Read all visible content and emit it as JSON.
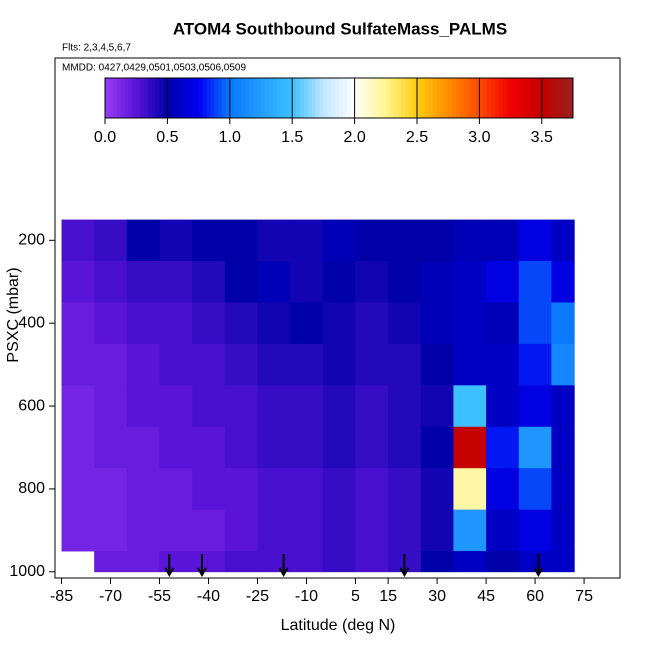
{
  "chart_data": {
    "type": "heatmap",
    "title": "ATOM4 Southbound SulfateMass_PALMS",
    "subtitle": "Flts: 2,3,4,5,6,7",
    "annotation": "MMDD: 0427,0429,0501,0503,0506,0509",
    "x_label": "Latitude (deg N)",
    "y_label": "PSXC (mbar)",
    "xlim": [
      -87,
      86
    ],
    "ylim": [
      1015,
      -240
    ],
    "xticks": [
      -85,
      -70,
      -55,
      -40,
      -25,
      -10,
      5,
      15,
      30,
      45,
      60,
      75
    ],
    "yticks": [
      200,
      400,
      600,
      800,
      1000
    ],
    "x_edges": [
      -85,
      -75,
      -65,
      -55,
      -45,
      -35,
      -25,
      -15,
      -5,
      5,
      15,
      25,
      35,
      45,
      55,
      65,
      72
    ],
    "y_edges": [
      150,
      250,
      350,
      450,
      550,
      650,
      750,
      850,
      950,
      1000
    ],
    "values": [
      [
        0.3,
        0.35,
        0.5,
        0.45,
        0.5,
        0.5,
        0.45,
        0.45,
        0.55,
        0.5,
        0.5,
        0.5,
        0.55,
        0.55,
        0.7,
        0.6
      ],
      [
        0.25,
        0.3,
        0.35,
        0.35,
        0.4,
        0.5,
        0.55,
        0.45,
        0.5,
        0.45,
        0.5,
        0.55,
        0.6,
        0.7,
        0.9,
        0.7
      ],
      [
        0.2,
        0.25,
        0.3,
        0.3,
        0.35,
        0.4,
        0.45,
        0.5,
        0.45,
        0.4,
        0.45,
        0.55,
        0.6,
        0.55,
        0.9,
        1.0
      ],
      [
        0.2,
        0.2,
        0.25,
        0.3,
        0.3,
        0.35,
        0.4,
        0.4,
        0.45,
        0.4,
        0.4,
        0.5,
        0.6,
        0.6,
        0.8,
        1.1
      ],
      [
        0.15,
        0.2,
        0.25,
        0.25,
        0.3,
        0.3,
        0.35,
        0.35,
        0.4,
        0.35,
        0.4,
        0.45,
        1.5,
        0.6,
        0.7,
        0.6
      ],
      [
        0.15,
        0.2,
        0.2,
        0.25,
        0.25,
        0.3,
        0.35,
        0.35,
        0.4,
        0.35,
        0.4,
        0.5,
        3.5,
        0.8,
        1.2,
        0.6
      ],
      [
        0.15,
        0.15,
        0.2,
        0.2,
        0.25,
        0.25,
        0.3,
        0.3,
        0.35,
        0.3,
        0.35,
        0.45,
        2.2,
        0.7,
        0.9,
        0.6
      ],
      [
        0.15,
        0.15,
        0.2,
        0.2,
        0.2,
        0.25,
        0.3,
        0.3,
        0.35,
        0.3,
        0.35,
        0.45,
        1.2,
        0.6,
        0.7,
        0.6
      ],
      [
        null,
        0.2,
        0.2,
        0.25,
        0.25,
        0.3,
        0.3,
        0.3,
        0.35,
        0.3,
        0.35,
        0.5,
        0.6,
        0.5,
        0.6,
        0.6
      ]
    ],
    "markers": [
      -52,
      -42,
      -17,
      20,
      61
    ],
    "colorbar": {
      "lim": [
        0,
        3.75
      ],
      "ticks": [
        {
          "value": 0,
          "label": "0.0"
        },
        0.5,
        {
          "value": 1,
          "label": "1.0"
        },
        1.5,
        {
          "value": 2,
          "label": "2.0"
        },
        2.5,
        {
          "value": 3,
          "label": "3.0"
        },
        3.5
      ]
    },
    "colorscale": [
      [
        0,
        "#9a3cf5"
      ],
      [
        0.25,
        "#5a14d8"
      ],
      [
        0.5,
        "#0000a8"
      ],
      [
        0.75,
        "#0000f0"
      ],
      [
        1,
        "#0a78ff"
      ],
      [
        1.5,
        "#3cc0ff"
      ],
      [
        1.75,
        "#c0e6ff"
      ],
      [
        2,
        "#ffffff"
      ],
      [
        2.25,
        "#fff590"
      ],
      [
        2.5,
        "#ffcc10"
      ],
      [
        2.75,
        "#ff8c00"
      ],
      [
        3,
        "#ff4a00"
      ],
      [
        3.25,
        "#f00000"
      ],
      [
        3.5,
        "#c40000"
      ],
      [
        3.75,
        "#9a2020"
      ]
    ]
  }
}
